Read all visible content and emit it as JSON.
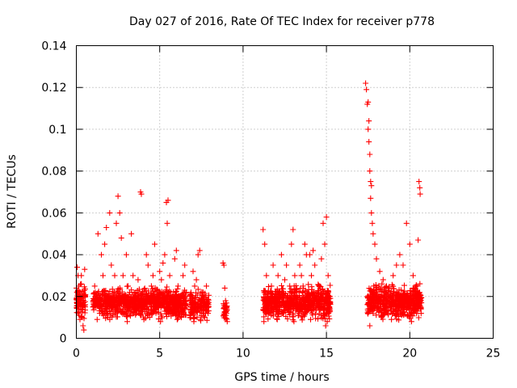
{
  "chart_data": {
    "type": "scatter",
    "title": "Day 027 of 2016, Rate Of TEC Index for receiver p778",
    "xlabel": "GPS time / hours",
    "ylabel": "ROTI / TECUs",
    "xlim": [
      0,
      25
    ],
    "ylim": [
      0,
      0.14
    ],
    "xticks": [
      0,
      5,
      10,
      15,
      20,
      25
    ],
    "xtick_labels": [
      "0",
      "5",
      "10",
      "15",
      "20",
      "25"
    ],
    "yticks": [
      0,
      0.02,
      0.04,
      0.06,
      0.08,
      0.1,
      0.12,
      0.14
    ],
    "ytick_labels": [
      "0",
      "0.02",
      "0.04",
      "0.06",
      "0.08",
      "0.1",
      "0.12",
      "0.14"
    ],
    "grid": true,
    "marker": "plus",
    "marker_color": "#ff0000",
    "series": [
      {
        "name": "ROTI",
        "points": [
          [
            0.05,
            0.034
          ],
          [
            0.1,
            0.03
          ],
          [
            0.15,
            0.025
          ],
          [
            0.2,
            0.02
          ],
          [
            0.25,
            0.015
          ],
          [
            0.3,
            0.03
          ],
          [
            0.35,
            0.01
          ],
          [
            0.4,
            0.006
          ],
          [
            0.45,
            0.004
          ],
          [
            0.5,
            0.033
          ],
          [
            0.3,
            0.026
          ],
          [
            0.12,
            0.012
          ],
          [
            0.22,
            0.009
          ],
          [
            0.38,
            0.018
          ],
          [
            1.0,
            0.015
          ],
          [
            1.1,
            0.025
          ],
          [
            1.2,
            0.018
          ],
          [
            1.3,
            0.05
          ],
          [
            1.4,
            0.012
          ],
          [
            1.5,
            0.04
          ],
          [
            1.6,
            0.03
          ],
          [
            1.7,
            0.045
          ],
          [
            1.8,
            0.053
          ],
          [
            1.9,
            0.02
          ],
          [
            2.0,
            0.06
          ],
          [
            2.1,
            0.035
          ],
          [
            2.2,
            0.012
          ],
          [
            2.3,
            0.03
          ],
          [
            2.4,
            0.055
          ],
          [
            2.5,
            0.068
          ],
          [
            2.6,
            0.06
          ],
          [
            2.7,
            0.048
          ],
          [
            2.8,
            0.03
          ],
          [
            2.9,
            0.018
          ],
          [
            3.0,
            0.04
          ],
          [
            3.1,
            0.025
          ],
          [
            3.2,
            0.022
          ],
          [
            3.3,
            0.05
          ],
          [
            3.4,
            0.03
          ],
          [
            3.5,
            0.015
          ],
          [
            3.6,
            0.012
          ],
          [
            3.7,
            0.028
          ],
          [
            3.85,
            0.07
          ],
          [
            3.9,
            0.069
          ],
          [
            4.0,
            0.02
          ],
          [
            4.1,
            0.018
          ],
          [
            4.2,
            0.04
          ],
          [
            4.3,
            0.035
          ],
          [
            4.4,
            0.01
          ],
          [
            4.5,
            0.025
          ],
          [
            4.6,
            0.03
          ],
          [
            4.7,
            0.045
          ],
          [
            4.8,
            0.02
          ],
          [
            4.9,
            0.015
          ],
          [
            5.0,
            0.032
          ],
          [
            5.1,
            0.028
          ],
          [
            5.2,
            0.036
          ],
          [
            5.3,
            0.04
          ],
          [
            5.4,
            0.065
          ],
          [
            5.5,
            0.066
          ],
          [
            5.45,
            0.055
          ],
          [
            5.6,
            0.03
          ],
          [
            5.7,
            0.012
          ],
          [
            5.8,
            0.02
          ],
          [
            5.9,
            0.038
          ],
          [
            6.0,
            0.042
          ],
          [
            6.1,
            0.025
          ],
          [
            6.2,
            0.018
          ],
          [
            6.3,
            0.01
          ],
          [
            6.4,
            0.03
          ],
          [
            6.5,
            0.035
          ],
          [
            6.6,
            0.022
          ],
          [
            1.25,
            0.009
          ],
          [
            2.05,
            0.011
          ],
          [
            3.05,
            0.008
          ],
          [
            4.05,
            0.009
          ],
          [
            5.05,
            0.008
          ],
          [
            6.05,
            0.009
          ],
          [
            1.55,
            0.021
          ],
          [
            2.55,
            0.019
          ],
          [
            3.55,
            0.02
          ],
          [
            4.55,
            0.019
          ],
          [
            5.55,
            0.021
          ],
          [
            6.55,
            0.018
          ],
          [
            6.8,
            0.02
          ],
          [
            6.9,
            0.012
          ],
          [
            7.0,
            0.032
          ],
          [
            7.1,
            0.025
          ],
          [
            7.2,
            0.028
          ],
          [
            7.3,
            0.04
          ],
          [
            7.4,
            0.042
          ],
          [
            7.5,
            0.015
          ],
          [
            7.6,
            0.022
          ],
          [
            7.7,
            0.01
          ],
          [
            7.8,
            0.025
          ],
          [
            7.9,
            0.012
          ],
          [
            7.05,
            0.008
          ],
          [
            7.45,
            0.018
          ],
          [
            8.8,
            0.036
          ],
          [
            8.85,
            0.035
          ],
          [
            8.9,
            0.024
          ],
          [
            8.95,
            0.018
          ],
          [
            9.0,
            0.012
          ],
          [
            9.05,
            0.008
          ],
          [
            8.92,
            0.015
          ],
          [
            11.2,
            0.052
          ],
          [
            11.3,
            0.045
          ],
          [
            11.4,
            0.03
          ],
          [
            11.5,
            0.02
          ],
          [
            11.6,
            0.012
          ],
          [
            11.7,
            0.025
          ],
          [
            11.8,
            0.035
          ],
          [
            11.9,
            0.018
          ],
          [
            12.0,
            0.015
          ],
          [
            12.1,
            0.03
          ],
          [
            12.2,
            0.022
          ],
          [
            12.3,
            0.04
          ],
          [
            12.4,
            0.012
          ],
          [
            12.5,
            0.028
          ],
          [
            12.6,
            0.035
          ],
          [
            12.7,
            0.018
          ],
          [
            12.8,
            0.025
          ],
          [
            12.9,
            0.045
          ],
          [
            13.0,
            0.052
          ],
          [
            13.1,
            0.03
          ],
          [
            13.2,
            0.02
          ],
          [
            13.3,
            0.015
          ],
          [
            13.4,
            0.035
          ],
          [
            13.5,
            0.03
          ],
          [
            13.6,
            0.025
          ],
          [
            13.7,
            0.045
          ],
          [
            13.8,
            0.04
          ],
          [
            13.9,
            0.018
          ],
          [
            14.0,
            0.04
          ],
          [
            14.1,
            0.03
          ],
          [
            14.2,
            0.042
          ],
          [
            14.3,
            0.035
          ],
          [
            14.4,
            0.02
          ],
          [
            14.5,
            0.015
          ],
          [
            14.6,
            0.025
          ],
          [
            14.7,
            0.038
          ],
          [
            14.8,
            0.055
          ],
          [
            14.9,
            0.045
          ],
          [
            15.0,
            0.058
          ],
          [
            15.1,
            0.03
          ],
          [
            15.2,
            0.02
          ],
          [
            14.85,
            0.012
          ],
          [
            14.95,
            0.006
          ],
          [
            15.05,
            0.008
          ],
          [
            11.25,
            0.008
          ],
          [
            12.05,
            0.009
          ],
          [
            13.05,
            0.008
          ],
          [
            14.05,
            0.009
          ],
          [
            11.65,
            0.019
          ],
          [
            12.65,
            0.02
          ],
          [
            13.65,
            0.019
          ],
          [
            14.65,
            0.021
          ],
          [
            17.35,
            0.122
          ],
          [
            17.4,
            0.119
          ],
          [
            17.45,
            0.112
          ],
          [
            17.5,
            0.113
          ],
          [
            17.55,
            0.104
          ],
          [
            17.5,
            0.1
          ],
          [
            17.55,
            0.094
          ],
          [
            17.6,
            0.088
          ],
          [
            17.6,
            0.08
          ],
          [
            17.65,
            0.075
          ],
          [
            17.7,
            0.073
          ],
          [
            17.65,
            0.067
          ],
          [
            17.7,
            0.06
          ],
          [
            17.75,
            0.055
          ],
          [
            17.8,
            0.05
          ],
          [
            17.9,
            0.045
          ],
          [
            18.0,
            0.038
          ],
          [
            18.2,
            0.032
          ],
          [
            18.4,
            0.028
          ],
          [
            18.6,
            0.025
          ],
          [
            18.8,
            0.02
          ],
          [
            19.0,
            0.03
          ],
          [
            19.2,
            0.035
          ],
          [
            19.4,
            0.04
          ],
          [
            19.6,
            0.035
          ],
          [
            19.8,
            0.055
          ],
          [
            20.0,
            0.045
          ],
          [
            20.2,
            0.03
          ],
          [
            20.4,
            0.025
          ],
          [
            20.5,
            0.047
          ],
          [
            20.55,
            0.075
          ],
          [
            20.6,
            0.072
          ],
          [
            20.62,
            0.069
          ],
          [
            20.4,
            0.018
          ],
          [
            17.8,
            0.012
          ],
          [
            18.3,
            0.01
          ],
          [
            18.9,
            0.009
          ],
          [
            19.5,
            0.011
          ],
          [
            20.1,
            0.008
          ],
          [
            17.6,
            0.006
          ],
          [
            18.1,
            0.019
          ],
          [
            18.7,
            0.021
          ],
          [
            19.3,
            0.018
          ],
          [
            19.9,
            0.02
          ],
          [
            20.3,
            0.021
          ]
        ]
      }
    ],
    "bands": [
      {
        "x0": 0.0,
        "x1": 0.55,
        "y_lo": 0.008,
        "y_hi": 0.028,
        "n": 90
      },
      {
        "x0": 1.0,
        "x1": 6.6,
        "y_lo": 0.008,
        "y_hi": 0.026,
        "n": 900
      },
      {
        "x0": 6.8,
        "x1": 7.95,
        "y_lo": 0.007,
        "y_hi": 0.024,
        "n": 150
      },
      {
        "x0": 8.82,
        "x1": 9.05,
        "y_lo": 0.006,
        "y_hi": 0.02,
        "n": 30
      },
      {
        "x0": 11.2,
        "x1": 15.25,
        "y_lo": 0.007,
        "y_hi": 0.027,
        "n": 650
      },
      {
        "x0": 17.45,
        "x1": 20.7,
        "y_lo": 0.007,
        "y_hi": 0.028,
        "n": 550
      }
    ]
  }
}
